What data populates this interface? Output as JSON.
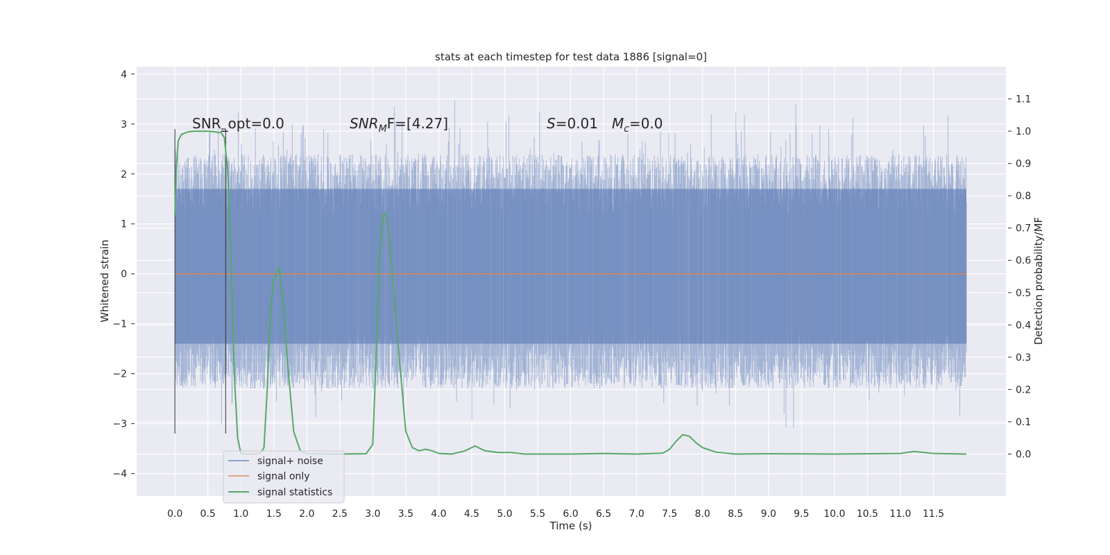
{
  "chart_data": {
    "type": "line",
    "title": "stats at each timestep for test data 1886 [signal=0]",
    "xlabel": "Time (s)",
    "ylabel": "Whitened strain",
    "y2label": "Detection probability/MF",
    "xlim": [
      -0.58,
      12.6
    ],
    "ylim": [
      -4.45,
      4.15
    ],
    "y2lim": [
      -0.13,
      1.2
    ],
    "xticks": [
      "0.0",
      "0.5",
      "1.0",
      "1.5",
      "2.0",
      "2.5",
      "3.0",
      "3.5",
      "4.0",
      "4.5",
      "5.0",
      "5.5",
      "6.0",
      "6.5",
      "7.0",
      "7.5",
      "8.0",
      "8.5",
      "9.0",
      "9.5",
      "10.0",
      "10.5",
      "11.0",
      "11.5"
    ],
    "yticks": [
      "4",
      "3",
      "2",
      "1",
      "0",
      "−1",
      "−2",
      "−3",
      "−4"
    ],
    "y2ticks": [
      "1.1",
      "1.0",
      "0.9",
      "0.8",
      "0.7",
      "0.6",
      "0.5",
      "0.4",
      "0.3",
      "0.2",
      "0.1",
      "0.0"
    ],
    "grid": true,
    "legend_position": "lower-left",
    "annotations": {
      "snr_opt": "SNR_opt=0.0",
      "snr_mf_main": "SNR",
      "snr_mf_sub": "M",
      "snr_mf_tail": "F=[4.27]",
      "s_main": "S",
      "s_tail": "=0.01",
      "mc_main": "M",
      "mc_sub": "c",
      "mc_tail": "=0.0"
    },
    "markers": {
      "lines_x": [
        0.0,
        0.77
      ],
      "ylim": [
        -3.2,
        2.9
      ]
    },
    "noise": {
      "x_range": [
        0.0,
        12.0
      ],
      "envelope": [
        -2.8,
        3.7
      ],
      "core": [
        -1.4,
        1.7
      ]
    },
    "series": [
      {
        "name": "signal+ noise",
        "color": "#4c72b0",
        "kind": "noise"
      },
      {
        "name": "signal only",
        "color": "#dd8452",
        "x": [
          0.0,
          12.0
        ],
        "y": [
          0.0,
          0.0
        ]
      },
      {
        "name": "signal statistics",
        "color": "#55a868",
        "axis": "right",
        "x": [
          0.0,
          0.02,
          0.05,
          0.1,
          0.2,
          0.3,
          0.4,
          0.5,
          0.6,
          0.7,
          0.75,
          0.8,
          0.85,
          0.9,
          0.95,
          1.0,
          1.1,
          1.2,
          1.3,
          1.35,
          1.4,
          1.45,
          1.5,
          1.58,
          1.65,
          1.7,
          1.8,
          1.9,
          2.0,
          2.5,
          2.9,
          3.0,
          3.05,
          3.1,
          3.15,
          3.2,
          3.25,
          3.3,
          3.4,
          3.5,
          3.6,
          3.7,
          3.8,
          3.9,
          4.0,
          4.2,
          4.4,
          4.55,
          4.7,
          4.9,
          5.1,
          5.3,
          5.5,
          6.0,
          6.5,
          7.0,
          7.4,
          7.5,
          7.6,
          7.7,
          7.8,
          7.9,
          8.0,
          8.2,
          8.5,
          9.0,
          10.0,
          11.0,
          11.2,
          11.5,
          12.0
        ],
        "y": [
          0.74,
          0.88,
          0.97,
          0.99,
          0.998,
          1.0,
          1.0,
          1.0,
          0.998,
          0.995,
          0.98,
          0.88,
          0.6,
          0.25,
          0.05,
          0.003,
          0.0,
          0.0,
          0.003,
          0.02,
          0.2,
          0.45,
          0.54,
          0.58,
          0.45,
          0.3,
          0.07,
          0.01,
          0.001,
          0.0,
          0.001,
          0.03,
          0.3,
          0.6,
          0.74,
          0.745,
          0.67,
          0.55,
          0.3,
          0.07,
          0.02,
          0.01,
          0.015,
          0.01,
          0.002,
          0.0,
          0.01,
          0.025,
          0.01,
          0.005,
          0.005,
          0.0,
          0.0,
          0.0,
          0.002,
          0.0,
          0.003,
          0.015,
          0.04,
          0.06,
          0.055,
          0.035,
          0.02,
          0.006,
          0.0,
          0.001,
          0.0,
          0.002,
          0.008,
          0.002,
          0.0
        ]
      }
    ]
  }
}
